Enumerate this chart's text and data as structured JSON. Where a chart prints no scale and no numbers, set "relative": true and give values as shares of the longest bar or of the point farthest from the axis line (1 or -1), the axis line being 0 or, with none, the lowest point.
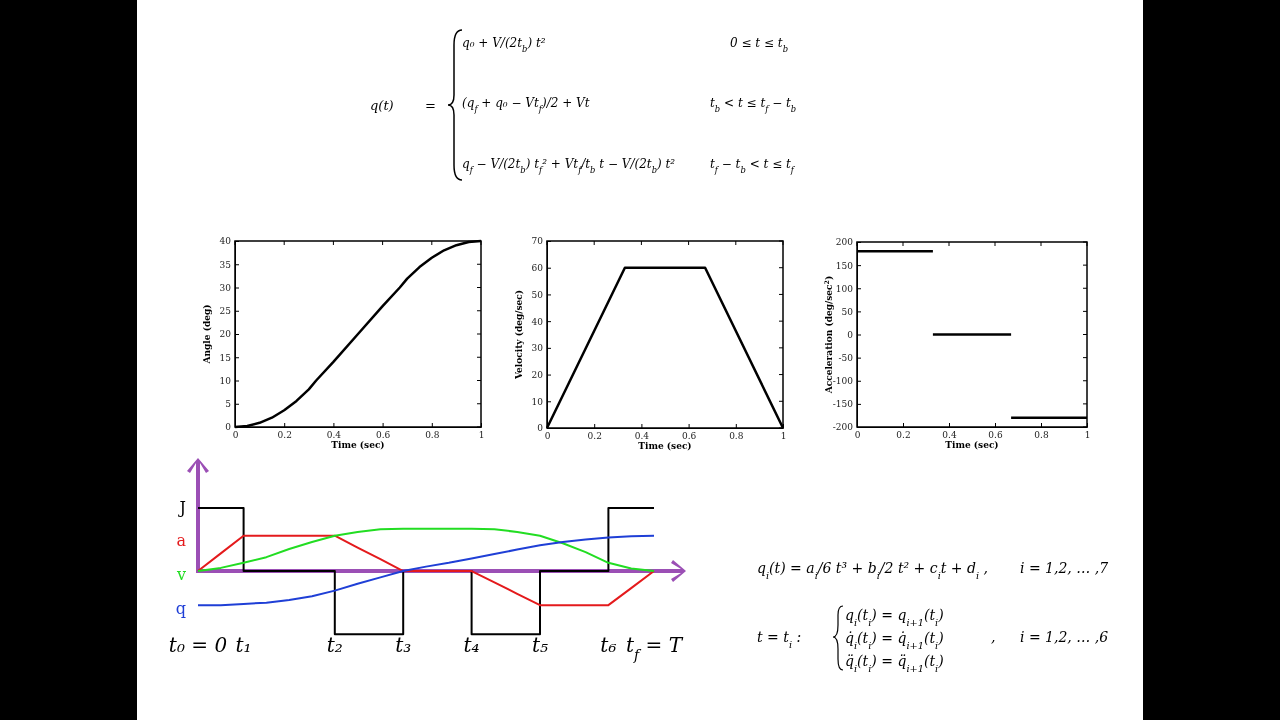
{
  "chart_data": [
    {
      "type": "other",
      "annotations": [
        "q(t)",
        "=",
        "q₀ + V/(2t$_{b}$) t²",
        "0 ≤ t ≤ t$_{b}$",
        "(q$_{f}$ + q₀ − Vt$_{f}$)/2 + Vt",
        "t$_{b}$ < t ≤ t$_{f}$ − t$_{b}$",
        "q$_{f}$ − V/(2t$_{b}$) t$_{f}$² + Vt$_{f}$/t$_{b}$ t − V/(2t$_{b}$) t²",
        "t$_{f}$ − t$_{b}$ < t ≤ t$_{f}$"
      ]
    },
    {
      "type": "line",
      "xlabel": "Time (sec)",
      "ylabel": "Angle (deg)",
      "xlim": [
        0,
        1
      ],
      "ylim": [
        0,
        40
      ],
      "xticks": [
        0,
        0.2,
        0.4,
        0.6,
        0.8,
        1
      ],
      "yticks": [
        0,
        5,
        10,
        15,
        20,
        25,
        30,
        35,
        40
      ],
      "grid": false,
      "series": [
        {
          "color": "#000000",
          "x": [
            0,
            0.05,
            0.1,
            0.15,
            0.2,
            0.25,
            0.3,
            0.33,
            0.4,
            0.5,
            0.6,
            0.67,
            0.7,
            0.75,
            0.8,
            0.85,
            0.9,
            0.95,
            1
          ],
          "values": [
            0,
            0.2,
            0.9,
            2.0,
            3.6,
            5.6,
            8.1,
            10,
            14,
            20,
            26,
            30,
            31.9,
            34.4,
            36.4,
            38.0,
            39.1,
            39.8,
            40
          ]
        }
      ]
    },
    {
      "type": "line",
      "xlabel": "Time (sec)",
      "ylabel": "Velocity (deg/sec)",
      "xlim": [
        0,
        1
      ],
      "ylim": [
        0,
        70
      ],
      "xticks": [
        0,
        0.2,
        0.4,
        0.6,
        0.8,
        1
      ],
      "yticks": [
        0,
        10,
        20,
        30,
        40,
        50,
        60,
        70
      ],
      "grid": false,
      "series": [
        {
          "color": "#000000",
          "x": [
            0,
            0.33,
            0.67,
            1
          ],
          "values": [
            0,
            60,
            60,
            0
          ]
        }
      ]
    },
    {
      "type": "line",
      "xlabel": "Time (sec)",
      "ylabel": "Acceleration (deg/sec$^{2}$)",
      "xlim": [
        0,
        1
      ],
      "ylim": [
        -200,
        200
      ],
      "xticks": [
        0,
        0.2,
        0.4,
        0.6,
        0.8,
        1
      ],
      "yticks": [
        -200,
        -150,
        -100,
        -50,
        0,
        50,
        100,
        150,
        200
      ],
      "grid": false,
      "series": [
        {
          "color": "#000000",
          "x": [
            0,
            0.33
          ],
          "values": [
            180,
            180
          ]
        },
        {
          "color": "#000000",
          "x": [
            0.33,
            0.67
          ],
          "values": [
            0,
            0
          ]
        },
        {
          "color": "#000000",
          "x": [
            0.67,
            1
          ],
          "values": [
            -180,
            -180
          ]
        }
      ]
    },
    {
      "type": "line",
      "relative": true,
      "grid": false,
      "ref_lines": [
        {
          "axis": "y",
          "value": 0,
          "color": "#9b4fb5"
        }
      ],
      "categories": [
        "t₀ = 0",
        null,
        "t₁",
        null,
        null,
        null,
        "t₂",
        null,
        null,
        "t₃",
        null,
        null,
        "t₄",
        null,
        null,
        "t₅",
        null,
        null,
        "t₆",
        null,
        "t$_{f}$ = T"
      ],
      "series": [
        {
          "name": "J",
          "type": "step",
          "color": "#000000",
          "values": [
            1,
            1,
            0,
            0,
            0,
            0,
            -1,
            -1,
            -1,
            0,
            0,
            0,
            -1,
            -1,
            -1,
            0,
            0,
            0,
            1,
            1,
            1
          ]
        },
        {
          "name": "a",
          "color": "#e41a1c",
          "values": [
            0,
            0.28,
            0.56,
            0.56,
            0.56,
            0.56,
            0.56,
            0.37,
            0.19,
            0,
            0,
            0,
            0,
            -0.18,
            -0.36,
            -0.54,
            -0.54,
            -0.54,
            -0.54,
            -0.27,
            0
          ]
        },
        {
          "name": "v",
          "color": "#22dd22",
          "values": [
            0,
            0.05,
            0.13,
            0.22,
            0.35,
            0.46,
            0.56,
            0.62,
            0.66,
            0.67,
            0.67,
            0.67,
            0.67,
            0.66,
            0.62,
            0.56,
            0.44,
            0.3,
            0.13,
            0.04,
            0
          ]
        },
        {
          "name": "q",
          "color": "#1f3fd6",
          "values": [
            -0.54,
            -0.54,
            -0.52,
            -0.5,
            -0.46,
            -0.4,
            -0.31,
            -0.2,
            -0.1,
            0,
            0.07,
            0.13,
            0.2,
            0.27,
            0.34,
            0.41,
            0.46,
            0.5,
            0.53,
            0.55,
            0.56
          ]
        }
      ]
    },
    {
      "type": "other",
      "annotations": [
        "q$_{i}$(t) = a$_{i}$/6 t³ + b$_{i}$/2 t² + c$_{i}$t + d$_{i}$ ,",
        "i = 1,2, … ,7",
        "t = t$_{i}$   :",
        "q$_{i}$(t$_{i}$) = q$_{i+1}$(t$_{i}$)",
        "q̇$_{i}$(t$_{i}$) = q̇$_{i+1}$(t$_{i}$)",
        "q̈$_{i}$(t$_{i}$) = q̈$_{i+1}$(t$_{i}$)",
        ",",
        "i = 1,2, … ,6"
      ]
    }
  ]
}
